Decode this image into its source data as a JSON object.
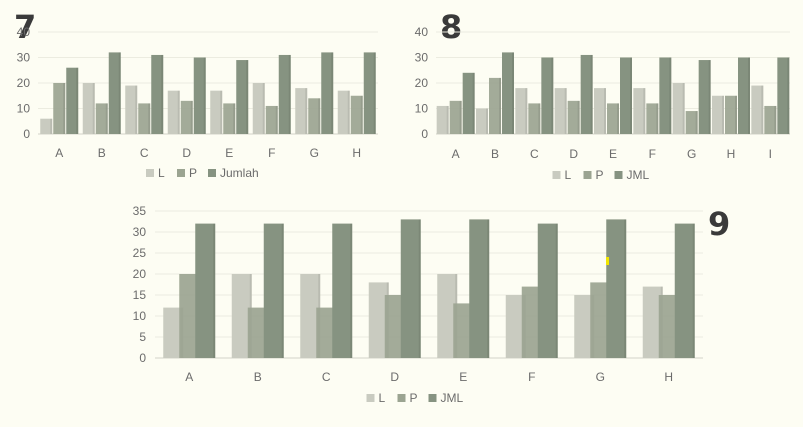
{
  "colors": {
    "L": "#c9cbc0",
    "P": "#9ba491",
    "Jumlah": "#869381",
    "axis_text": "#6b6b6b",
    "gridline": "#ecece0",
    "badge": "#3a3a3a",
    "highlight": "#f2e600"
  },
  "chart_data": [
    {
      "type": "bar",
      "badge": "7",
      "categories": [
        "A",
        "B",
        "C",
        "D",
        "E",
        "F",
        "G",
        "H"
      ],
      "series": [
        {
          "name": "L",
          "color_key": "L",
          "values": [
            6,
            20,
            19,
            17,
            17,
            20,
            18,
            17
          ]
        },
        {
          "name": "P",
          "color_key": "P",
          "values": [
            20,
            12,
            12,
            13,
            12,
            11,
            14,
            15
          ]
        },
        {
          "name": "Jumlah",
          "color_key": "Jumlah",
          "values": [
            26,
            32,
            31,
            30,
            29,
            31,
            32,
            32
          ]
        }
      ],
      "ylim": [
        0,
        40
      ],
      "yticks": [
        0,
        10,
        20,
        30,
        40
      ],
      "legend": "bottom",
      "grid": true
    },
    {
      "type": "bar",
      "badge": "8",
      "categories": [
        "A",
        "B",
        "C",
        "D",
        "E",
        "F",
        "G",
        "H",
        "I"
      ],
      "series": [
        {
          "name": "L",
          "color_key": "L",
          "values": [
            11,
            10,
            18,
            18,
            18,
            18,
            20,
            15,
            19
          ]
        },
        {
          "name": "P",
          "color_key": "P",
          "values": [
            13,
            22,
            12,
            13,
            12,
            12,
            9,
            15,
            11
          ]
        },
        {
          "name": "JML",
          "color_key": "Jumlah",
          "values": [
            24,
            32,
            30,
            31,
            30,
            30,
            29,
            30,
            30
          ]
        }
      ],
      "ylim": [
        0,
        40
      ],
      "yticks": [
        0,
        10,
        20,
        30,
        40
      ],
      "legend": "bottom",
      "grid": true
    },
    {
      "type": "bar",
      "badge": "9",
      "categories": [
        "A",
        "B",
        "C",
        "D",
        "E",
        "F",
        "G",
        "H"
      ],
      "series": [
        {
          "name": "L",
          "color_key": "L",
          "values": [
            12,
            20,
            20,
            18,
            20,
            15,
            15,
            17
          ]
        },
        {
          "name": "P",
          "color_key": "P",
          "values": [
            20,
            12,
            12,
            15,
            13,
            17,
            18,
            15
          ]
        },
        {
          "name": "JML",
          "color_key": "Jumlah",
          "values": [
            32,
            32,
            32,
            33,
            33,
            32,
            33,
            32
          ]
        }
      ],
      "ylim": [
        0,
        35
      ],
      "yticks": [
        0,
        5,
        10,
        15,
        20,
        25,
        30,
        35
      ],
      "legend": "bottom",
      "grid": true
    }
  ]
}
